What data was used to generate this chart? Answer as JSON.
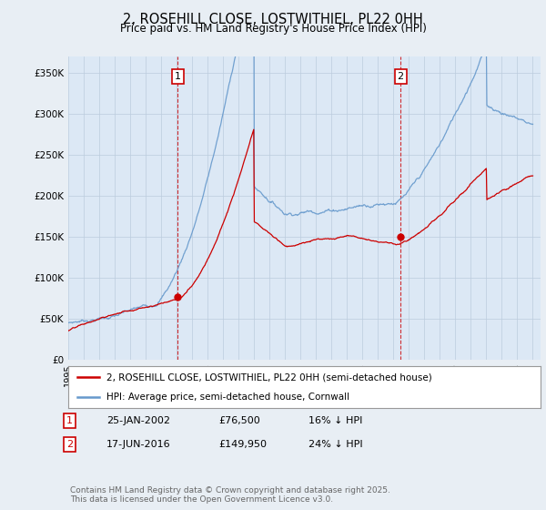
{
  "title": "2, ROSEHILL CLOSE, LOSTWITHIEL, PL22 0HH",
  "subtitle": "Price paid vs. HM Land Registry's House Price Index (HPI)",
  "legend_line1": "2, ROSEHILL CLOSE, LOSTWITHIEL, PL22 0HH (semi-detached house)",
  "legend_line2": "HPI: Average price, semi-detached house, Cornwall",
  "sale1_date": "25-JAN-2002",
  "sale1_price": "£76,500",
  "sale1_hpi": "16% ↓ HPI",
  "sale2_date": "17-JUN-2016",
  "sale2_price": "£149,950",
  "sale2_hpi": "24% ↓ HPI",
  "footer": "Contains HM Land Registry data © Crown copyright and database right 2025.\nThis data is licensed under the Open Government Licence v3.0.",
  "ylim": [
    0,
    370000
  ],
  "yticks": [
    0,
    50000,
    100000,
    150000,
    200000,
    250000,
    300000,
    350000
  ],
  "ytick_labels": [
    "£0",
    "£50K",
    "£100K",
    "£150K",
    "£200K",
    "£250K",
    "£300K",
    "£350K"
  ],
  "background_color": "#e8eef4",
  "plot_bg_color": "#dce8f5",
  "red_line_color": "#cc0000",
  "blue_line_color": "#6699cc",
  "vline_color": "#cc0000",
  "marker1_x": 2002.07,
  "marker1_y": 76500,
  "marker2_x": 2016.46,
  "marker2_y": 149950,
  "xlim_left": 1995,
  "xlim_right": 2025.5
}
